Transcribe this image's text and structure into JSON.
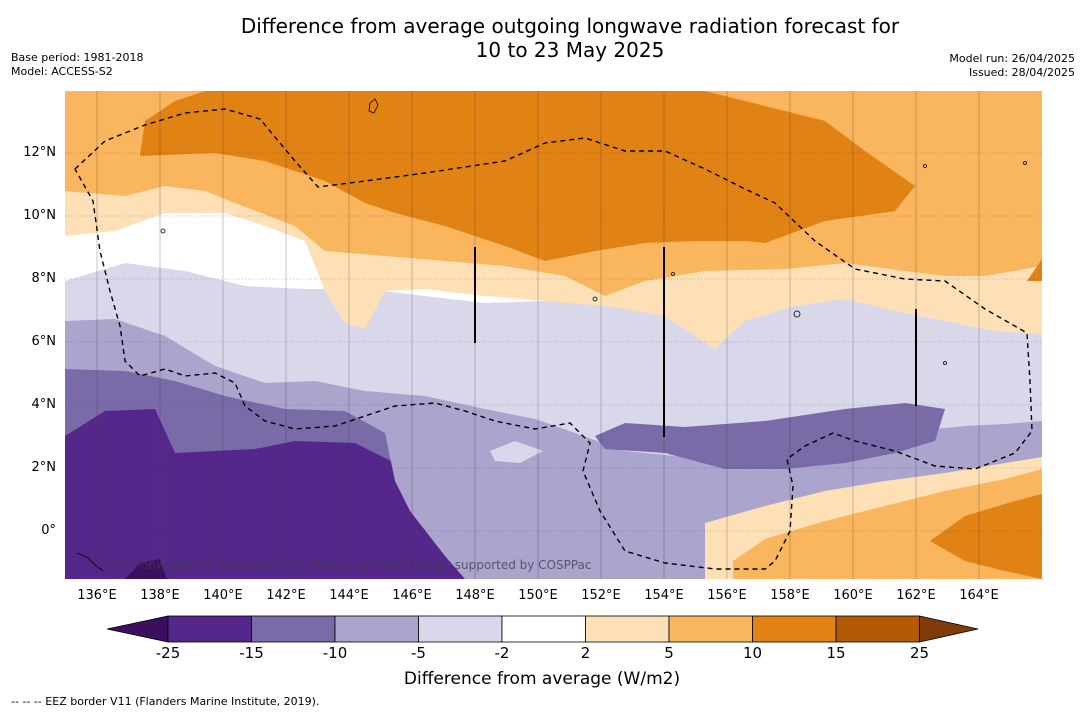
{
  "title_line1": "Difference from average outgoing longwave radiation forecast for",
  "title_line2": "10 to 23 May 2025",
  "base_period": "Base period: 1981-2018",
  "model": "Model: ACCESS-S2",
  "model_run": "Model run: 26/04/2025",
  "issued": "Issued: 28/04/2025",
  "lat_labels": [
    "12°N",
    "10°N",
    "8°N",
    "6°N",
    "4°N",
    "2°N",
    "0°"
  ],
  "lon_labels": [
    "136°E",
    "138°E",
    "140°E",
    "142°E",
    "144°E",
    "146°E",
    "148°E",
    "150°E",
    "152°E",
    "154°E",
    "156°E",
    "158°E",
    "160°E",
    "162°E",
    "164°E"
  ],
  "attribution": "Commonwealth of Australia 2025, Bureau of Meteorology, supported by COSPPac",
  "colorbar": {
    "ticks": [
      "-25",
      "-15",
      "-10",
      "-5",
      "-2",
      "2",
      "5",
      "10",
      "15",
      "25"
    ],
    "colors": [
      "#3b0f5e",
      "#55278b",
      "#7b6aa8",
      "#aba4cd",
      "#d8d8ea",
      "#ffffff",
      "#fde0b6",
      "#f9b65f",
      "#e08214",
      "#b35806",
      "#7f3b08"
    ],
    "label": "Difference from average (W/m2)"
  },
  "footer": "-- -- -- EEZ border V11 (Flanders Marine Institute, 2019)."
}
